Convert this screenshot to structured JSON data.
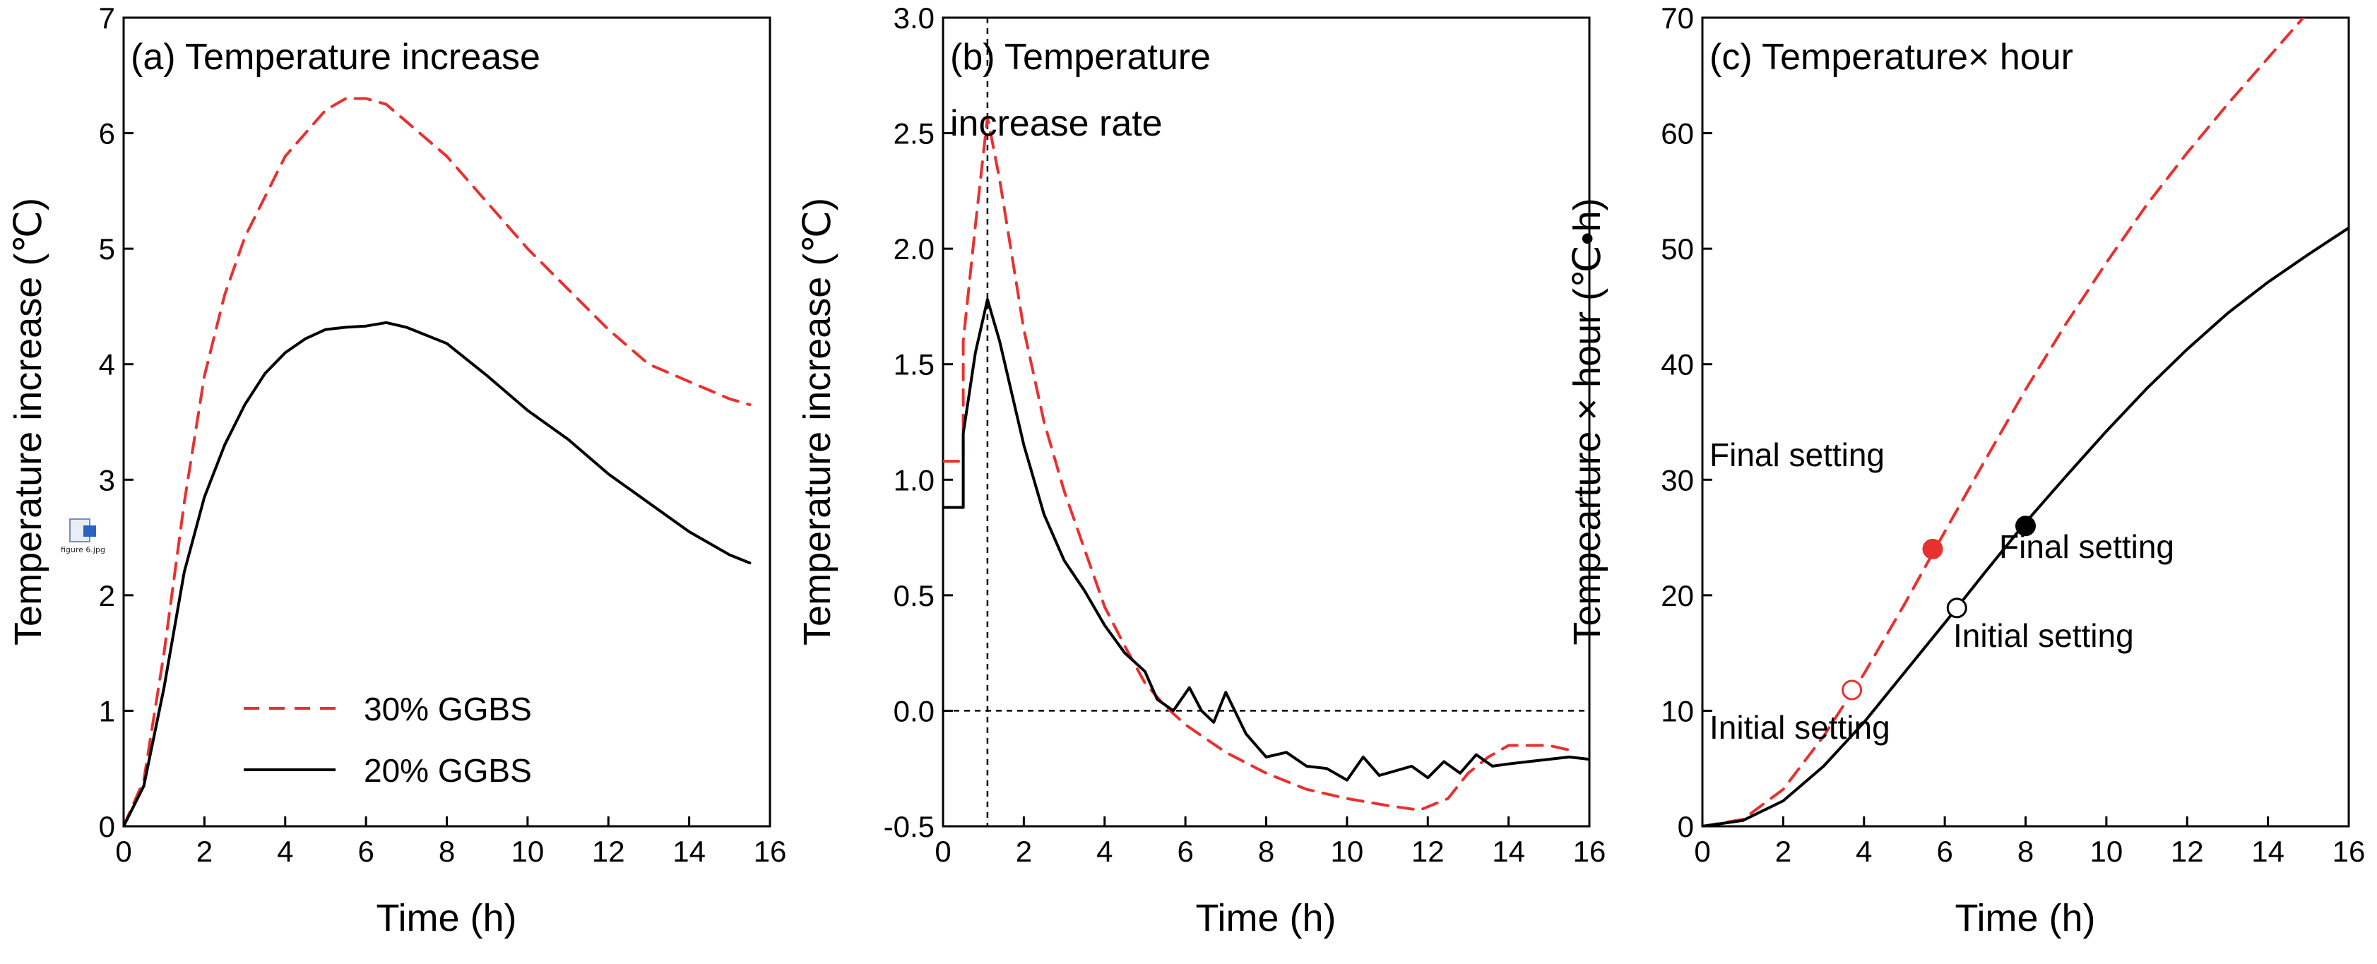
{
  "chart_data": [
    {
      "type": "line",
      "title": "(a) Temperature increase",
      "xlabel": "Time (h)",
      "ylabel": "Temperature increase (℃)",
      "xlim": [
        0,
        16
      ],
      "ylim": [
        0,
        7
      ],
      "xticks": [
        0,
        2,
        4,
        6,
        8,
        10,
        12,
        14,
        16
      ],
      "yticks": [
        0,
        1,
        2,
        3,
        4,
        5,
        6,
        7
      ],
      "legend": {
        "position": "bottom-center",
        "entries": [
          "30% GGBS",
          "20% GGBS"
        ]
      },
      "series": [
        {
          "name": "30% GGBS",
          "color": "#e8312f",
          "dash": "dashed",
          "x": [
            0,
            0.5,
            1,
            1.5,
            2,
            2.5,
            3,
            4,
            5,
            5.5,
            6,
            6.5,
            7,
            8,
            9,
            10,
            11,
            12,
            12.5,
            13,
            14,
            15,
            15.5
          ],
          "y": [
            0,
            0.4,
            1.5,
            2.8,
            3.9,
            4.6,
            5.1,
            5.8,
            6.2,
            6.3,
            6.3,
            6.25,
            6.1,
            5.8,
            5.4,
            5.0,
            4.65,
            4.3,
            4.15,
            4.0,
            3.85,
            3.7,
            3.65
          ]
        },
        {
          "name": "20% GGBS",
          "color": "#000000",
          "dash": "solid",
          "x": [
            0,
            0.5,
            1,
            1.5,
            2,
            2.5,
            3,
            3.5,
            4,
            4.5,
            5,
            5.5,
            6,
            6.5,
            7,
            8,
            9,
            10,
            11,
            12,
            13,
            14,
            15,
            15.5
          ],
          "y": [
            0,
            0.35,
            1.2,
            2.2,
            2.85,
            3.3,
            3.65,
            3.92,
            4.1,
            4.22,
            4.3,
            4.32,
            4.33,
            4.36,
            4.32,
            4.18,
            3.9,
            3.6,
            3.35,
            3.05,
            2.8,
            2.55,
            2.35,
            2.28
          ]
        }
      ]
    },
    {
      "type": "line",
      "title": "(b) Temperature",
      "title_line2": "increase rate",
      "xlabel": "Time (h)",
      "ylabel": "Temperature increase (℃)",
      "xlim": [
        0,
        16
      ],
      "ylim": [
        -0.5,
        3.0
      ],
      "xticks": [
        0,
        2,
        4,
        6,
        8,
        10,
        12,
        14,
        16
      ],
      "yticks": [
        -0.5,
        0.0,
        0.5,
        1.0,
        1.5,
        2.0,
        2.5,
        3.0
      ],
      "ytick_labels": [
        "-0.5",
        "0.0",
        "0.5",
        "1.0",
        "1.5",
        "2.0",
        "2.5",
        "3.0"
      ],
      "reference_lines": {
        "vertical_x": 1.1,
        "horizontal_y": 0
      },
      "series": [
        {
          "name": "30% GGBS",
          "color": "#e8312f",
          "dash": "dashed",
          "x": [
            0,
            0.5,
            0.5,
            0.8,
            1.1,
            1.4,
            2,
            2.5,
            3,
            3.5,
            4,
            4.5,
            5,
            5.5,
            6,
            6.5,
            7,
            8,
            9,
            10,
            11,
            11.8,
            12.5,
            13,
            13.5,
            14,
            15,
            15.5
          ],
          "y": [
            1.08,
            1.08,
            1.6,
            2.1,
            2.57,
            2.3,
            1.65,
            1.25,
            0.95,
            0.7,
            0.45,
            0.28,
            0.12,
            0.02,
            -0.06,
            -0.12,
            -0.18,
            -0.27,
            -0.34,
            -0.38,
            -0.41,
            -0.43,
            -0.38,
            -0.27,
            -0.2,
            -0.15,
            -0.15,
            -0.17
          ]
        },
        {
          "name": "20% GGBS",
          "color": "#000000",
          "dash": "solid",
          "x": [
            0,
            0.5,
            0.5,
            0.8,
            1.1,
            1.4,
            2,
            2.5,
            3,
            3.5,
            4,
            4.5,
            5,
            5.3,
            5.7,
            6.1,
            6.4,
            6.7,
            7,
            7.5,
            8,
            8.5,
            9,
            9.5,
            10,
            10.4,
            10.8,
            11.2,
            11.6,
            12,
            12.4,
            12.8,
            13.2,
            13.6,
            14,
            14.5,
            15,
            15.5,
            16
          ],
          "y": [
            0.88,
            0.88,
            1.2,
            1.55,
            1.78,
            1.6,
            1.15,
            0.85,
            0.65,
            0.52,
            0.37,
            0.25,
            0.17,
            0.05,
            0.0,
            0.1,
            0.0,
            -0.05,
            0.08,
            -0.1,
            -0.2,
            -0.18,
            -0.24,
            -0.25,
            -0.3,
            -0.2,
            -0.28,
            -0.26,
            -0.24,
            -0.29,
            -0.22,
            -0.27,
            -0.19,
            -0.24,
            -0.23,
            -0.22,
            -0.21,
            -0.2,
            -0.21
          ]
        }
      ]
    },
    {
      "type": "line",
      "title": "(c) Temperature× hour",
      "xlabel": "Time (h)",
      "ylabel": "Tempearture × hour (℃•h)",
      "xlim": [
        0,
        16
      ],
      "ylim": [
        0,
        70
      ],
      "xticks": [
        0,
        2,
        4,
        6,
        8,
        10,
        12,
        14,
        16
      ],
      "yticks": [
        0,
        10,
        20,
        30,
        40,
        50,
        60,
        70
      ],
      "series": [
        {
          "name": "30% GGBS",
          "color": "#e8312f",
          "dash": "dashed",
          "x": [
            0,
            1,
            2,
            3,
            4,
            5,
            6,
            7,
            8,
            9,
            10,
            11,
            12,
            13,
            14,
            15
          ],
          "y": [
            0,
            0.6,
            3.2,
            7.8,
            13.2,
            19.2,
            25.5,
            31.7,
            37.8,
            43.5,
            48.8,
            53.8,
            58.3,
            62.5,
            66.5,
            70.5
          ]
        },
        {
          "name": "20% GGBS",
          "color": "#000000",
          "dash": "solid",
          "x": [
            0,
            1,
            2,
            3,
            4,
            5,
            6,
            7,
            8,
            9,
            10,
            11,
            12,
            13,
            14,
            15,
            16
          ],
          "y": [
            0,
            0.5,
            2.2,
            5.2,
            9.0,
            13.3,
            17.6,
            22.0,
            26.3,
            30.3,
            34.2,
            37.9,
            41.3,
            44.4,
            47.1,
            49.5,
            51.8
          ]
        }
      ],
      "markers": [
        {
          "series": "30% GGBS",
          "kind": "initial",
          "x": 3.7,
          "y": 11.8,
          "filled": false,
          "color": "#e8312f"
        },
        {
          "series": "30% GGBS",
          "kind": "final",
          "x": 5.7,
          "y": 24.0,
          "filled": true,
          "color": "#e8312f"
        },
        {
          "series": "20% GGBS",
          "kind": "initial",
          "x": 6.3,
          "y": 18.9,
          "filled": false,
          "color": "#000000"
        },
        {
          "series": "20% GGBS",
          "kind": "final",
          "x": 8.0,
          "y": 26.0,
          "filled": true,
          "color": "#000000"
        }
      ],
      "annotations": [
        {
          "text": "Final setting",
          "near": "upper-left"
        },
        {
          "text": "Final setting",
          "near": "20% final marker"
        },
        {
          "text": "Initial setting",
          "near": "20% initial marker"
        },
        {
          "text": "Initial setting",
          "near": "lower-left"
        }
      ]
    }
  ],
  "file_icon_caption": "figure 6.jpg"
}
